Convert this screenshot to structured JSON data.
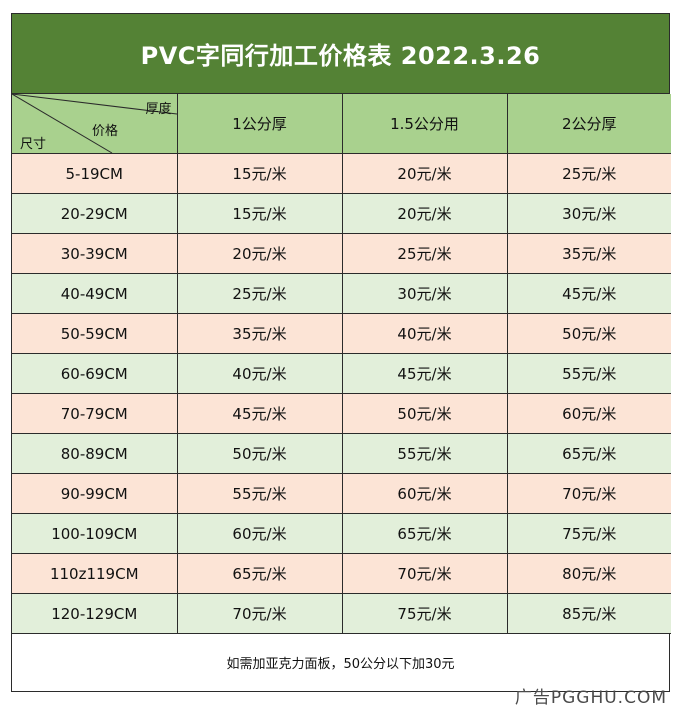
{
  "title": "PVC字同行加工价格表  2022.3.26",
  "header": {
    "corner_thickness": "厚度",
    "corner_price": "价格",
    "corner_size": "尺寸",
    "columns": [
      "1公分厚",
      "1.5公分用",
      "2公分厚"
    ]
  },
  "rows": [
    {
      "size": "5-19CM",
      "p1": "15元/米",
      "p15": "20元/米",
      "p2": "25元/米"
    },
    {
      "size": "20-29CM",
      "p1": "15元/米",
      "p15": "20元/米",
      "p2": "30元/米"
    },
    {
      "size": "30-39CM",
      "p1": "20元/米",
      "p15": "25元/米",
      "p2": "35元/米"
    },
    {
      "size": "40-49CM",
      "p1": "25元/米",
      "p15": "30元/米",
      "p2": "45元/米"
    },
    {
      "size": "50-59CM",
      "p1": "35元/米",
      "p15": "40元/米",
      "p2": "50元/米"
    },
    {
      "size": "60-69CM",
      "p1": "40元/米",
      "p15": "45元/米",
      "p2": "55元/米"
    },
    {
      "size": "70-79CM",
      "p1": "45元/米",
      "p15": "50元/米",
      "p2": "60元/米"
    },
    {
      "size": "80-89CM",
      "p1": "50元/米",
      "p15": "55元/米",
      "p2": "65元/米"
    },
    {
      "size": "90-99CM",
      "p1": "55元/米",
      "p15": "60元/米",
      "p2": "70元/米"
    },
    {
      "size": "100-109CM",
      "p1": "60元/米",
      "p15": "65元/米",
      "p2": "75元/米"
    },
    {
      "size": "110z119CM",
      "p1": "65元/米",
      "p15": "70元/米",
      "p2": "80元/米"
    },
    {
      "size": "120-129CM",
      "p1": "70元/米",
      "p15": "75元/米",
      "p2": "85元/米"
    }
  ],
  "footer_note": "如需加亚克力面板，50公分以下加30元",
  "watermark": "广告PGGHU.COM",
  "colors": {
    "title_bg": "#548235",
    "header_bg": "#a9d18e",
    "row_peach": "#fce4d6",
    "row_mint": "#e2efda"
  }
}
